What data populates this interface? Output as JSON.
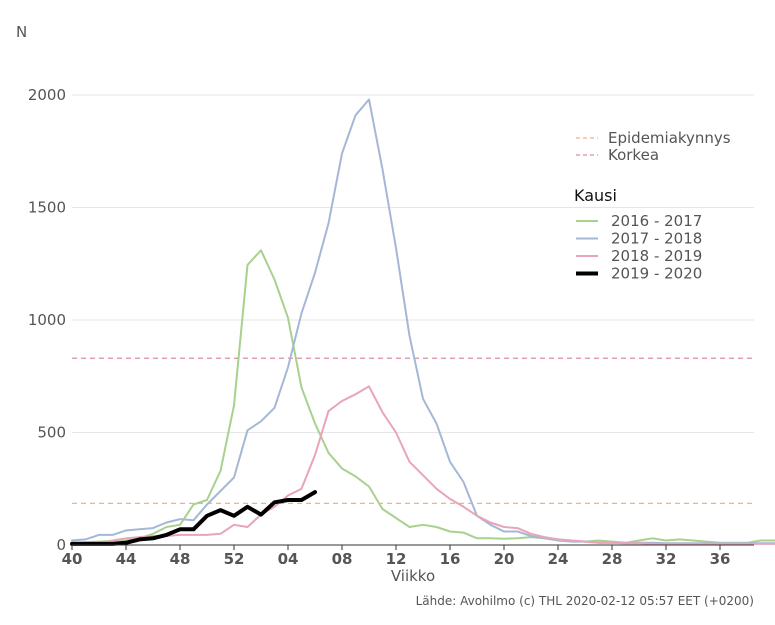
{
  "chart_data": {
    "type": "line",
    "ylabel": "N",
    "xlabel": "Viikko",
    "ylim": [
      0,
      2050
    ],
    "yticks": [
      0,
      500,
      1000,
      1500,
      2000
    ],
    "xtick_labels": [
      "40",
      "44",
      "48",
      "52",
      "04",
      "08",
      "12",
      "16",
      "20",
      "24",
      "28",
      "32",
      "36"
    ],
    "grid": "horizontal",
    "legend_placement": "top-right",
    "thresholds": [
      {
        "name": "Epidemiakynnys",
        "value": 185,
        "color": "#f4b183"
      },
      {
        "name": "Korkea",
        "value": 830,
        "color": "#d98ea4"
      }
    ],
    "legend_title": "Kausi",
    "series": [
      {
        "name": "2016 - 2017",
        "color": "#a9d18e",
        "width": 2,
        "values": [
          10,
          12,
          15,
          18,
          20,
          30,
          50,
          80,
          90,
          180,
          200,
          330,
          620,
          1245,
          1310,
          1180,
          1010,
          700,
          540,
          410,
          340,
          305,
          260,
          160,
          120,
          80,
          90,
          80,
          60,
          55,
          30,
          30,
          28,
          30,
          35,
          30,
          25,
          20,
          15,
          20,
          15,
          10,
          20,
          30,
          20,
          25,
          20,
          15,
          10,
          10,
          10,
          20,
          20,
          25,
          30,
          40
        ]
      },
      {
        "name": "2017 - 2018",
        "color": "#a4b8d6",
        "width": 2,
        "values": [
          20,
          25,
          45,
          45,
          65,
          70,
          75,
          100,
          115,
          110,
          180,
          240,
          300,
          510,
          550,
          610,
          790,
          1030,
          1210,
          1430,
          1740,
          1910,
          1980,
          1670,
          1320,
          930,
          650,
          540,
          370,
          280,
          130,
          90,
          60,
          60,
          40,
          30,
          20,
          15,
          15,
          10,
          10,
          10,
          10,
          10,
          8,
          8,
          8,
          8,
          8,
          8,
          8,
          8,
          8,
          8,
          8,
          8
        ]
      },
      {
        "name": "2018 - 2019",
        "color": "#e8a5b8",
        "width": 2,
        "values": [
          5,
          8,
          10,
          20,
          30,
          35,
          40,
          40,
          45,
          45,
          45,
          50,
          90,
          80,
          135,
          170,
          220,
          250,
          400,
          595,
          640,
          670,
          705,
          590,
          500,
          370,
          310,
          250,
          205,
          170,
          130,
          100,
          80,
          75,
          50,
          35,
          25,
          20,
          15,
          10,
          10,
          8,
          8,
          5,
          5,
          5,
          5,
          5,
          5,
          5,
          5,
          5,
          5,
          5,
          5,
          5
        ]
      },
      {
        "name": "2019 - 2020",
        "color": "#000000",
        "width": 4,
        "values": [
          5,
          5,
          5,
          5,
          10,
          25,
          30,
          45,
          70,
          70,
          130,
          155,
          130,
          170,
          135,
          190,
          200,
          200,
          235
        ]
      }
    ]
  },
  "source": "Lähde: Avohilmo (c) THL 2020-02-12 05:57 EET (+0200)"
}
